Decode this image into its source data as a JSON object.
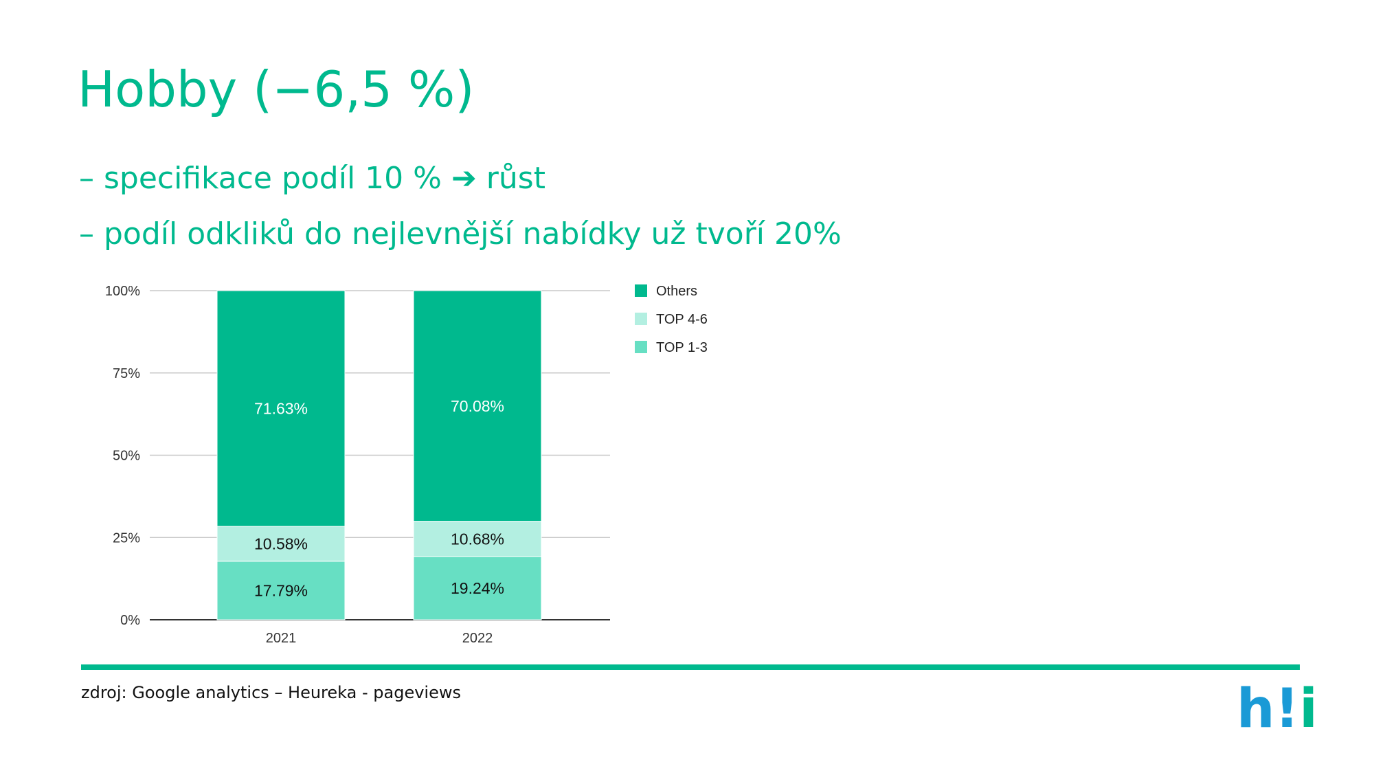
{
  "header": {
    "title": "Hobby (−6,5 %)",
    "bullets": [
      "– specifikace podíl 10 % ➔ růst",
      "– podíl odkliků do nejlevnější nabídky už tvoří 20%"
    ]
  },
  "chart_data": {
    "type": "stacked_bar",
    "categories": [
      "2021",
      "2022"
    ],
    "series": [
      {
        "name": "TOP 1-3",
        "color": "#67dfc3",
        "label_color": "#111111",
        "values": [
          17.79,
          19.24
        ],
        "value_labels": [
          "17.79%",
          "19.24%"
        ]
      },
      {
        "name": "TOP 4-6",
        "color": "#b3efe1",
        "label_color": "#111111",
        "values": [
          10.58,
          10.68
        ],
        "value_labels": [
          "10.58%",
          "10.68%"
        ]
      },
      {
        "name": "Others",
        "color": "#00b98e",
        "label_color": "#ffffff",
        "values": [
          71.63,
          70.08
        ],
        "value_labels": [
          "71.63%",
          "70.08%"
        ]
      }
    ],
    "ylim": [
      0,
      100
    ],
    "yticks": [
      {
        "value": 0,
        "label": "0%"
      },
      {
        "value": 25,
        "label": "25%"
      },
      {
        "value": 50,
        "label": "50%"
      },
      {
        "value": 75,
        "label": "75%"
      },
      {
        "value": 100,
        "label": "100%"
      }
    ],
    "grid": true,
    "legend": "right"
  },
  "footer": {
    "source": "zdroj: Google analytics – Heureka - pageviews",
    "logo": [
      "h",
      "!",
      "i"
    ]
  }
}
